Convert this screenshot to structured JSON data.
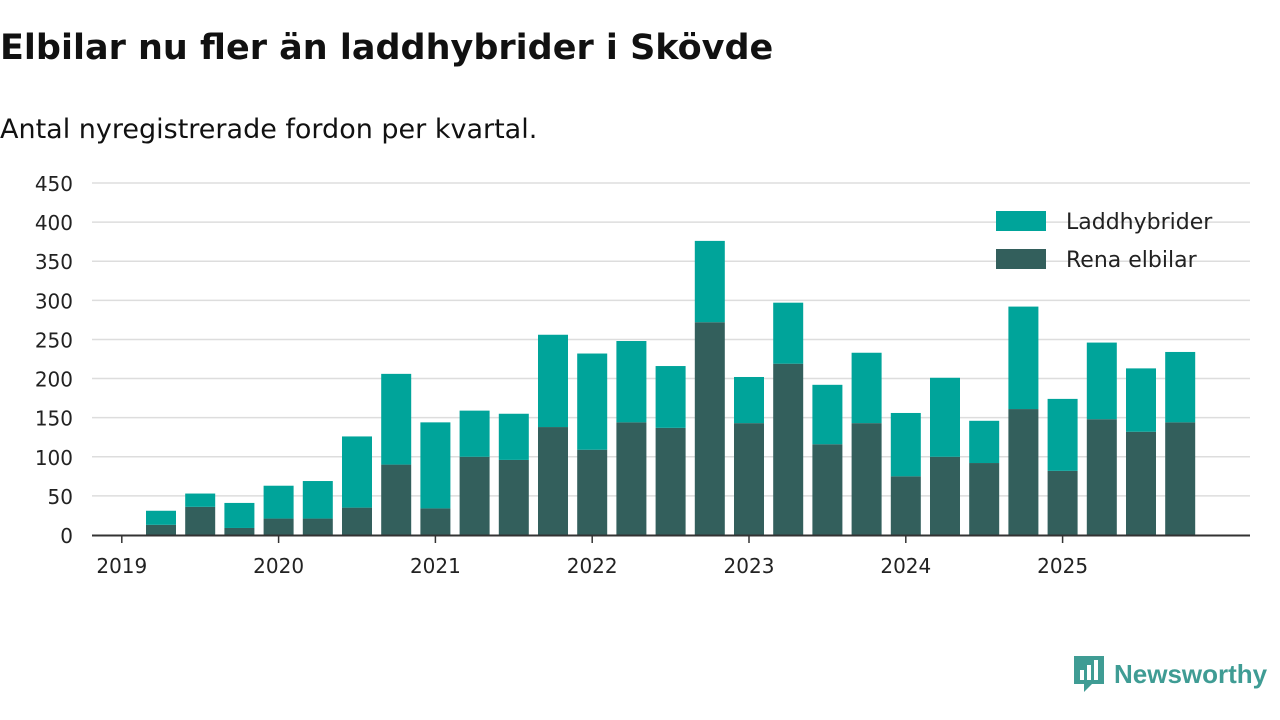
{
  "header": {
    "title": "Elbilar nu fler än laddhybrider i Skövde",
    "subtitle": "Antal nyregistrerade fordon per kvartal."
  },
  "colors": {
    "hybrid": "#00a49a",
    "electric": "#335f5c",
    "grid": "#dddddd",
    "axis": "#333333",
    "brand": "#3f9c94"
  },
  "brand": {
    "name": "Newsworthy"
  },
  "chart_data": {
    "type": "bar",
    "stacked": true,
    "title": "Elbilar nu fler än laddhybrider i Skövde",
    "subtitle": "Antal nyregistrerade fordon per kvartal.",
    "xlabel": "",
    "ylabel": "",
    "ylim": [
      0,
      450
    ],
    "yticks": [
      0,
      50,
      100,
      150,
      200,
      250,
      300,
      350,
      400,
      450
    ],
    "x_tick_labels": [
      "2019",
      "2020",
      "2021",
      "2022",
      "2023",
      "2024",
      "2025"
    ],
    "categories": [
      "2019 Q2",
      "2019 Q3",
      "2019 Q4",
      "2020 Q1",
      "2020 Q2",
      "2020 Q3",
      "2020 Q4",
      "2021 Q1",
      "2021 Q2",
      "2021 Q3",
      "2021 Q4",
      "2022 Q1",
      "2022 Q2",
      "2022 Q3",
      "2022 Q4",
      "2023 Q1",
      "2023 Q2",
      "2023 Q3",
      "2023 Q4",
      "2024 Q1",
      "2024 Q2",
      "2024 Q3",
      "2024 Q4",
      "2025 Q1",
      "2025 Q2",
      "2025 Q3",
      "2025 Q4"
    ],
    "series": [
      {
        "name": "Rena elbilar",
        "values": [
          13,
          36,
          9,
          21,
          21,
          35,
          90,
          34,
          100,
          96,
          138,
          109,
          144,
          137,
          272,
          143,
          219,
          116,
          143,
          75,
          100,
          92,
          161,
          82,
          148,
          132,
          144
        ]
      },
      {
        "name": "Laddhybrider",
        "values": [
          18,
          17,
          32,
          42,
          48,
          91,
          116,
          110,
          59,
          59,
          118,
          123,
          104,
          79,
          104,
          59,
          78,
          76,
          90,
          81,
          101,
          54,
          131,
          92,
          98,
          81,
          90
        ]
      }
    ],
    "legend": {
      "position": "top-right",
      "entries": [
        "Laddhybrider",
        "Rena elbilar"
      ]
    },
    "grid": true
  }
}
